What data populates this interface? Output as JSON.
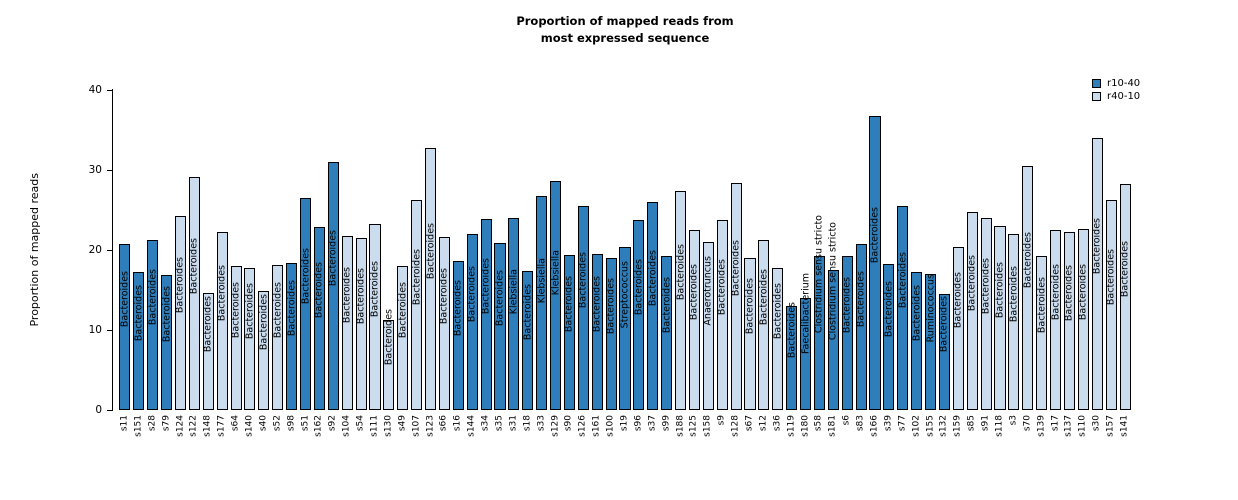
{
  "chart_data": {
    "type": "bar",
    "title": "Proportion of mapped reads from most expressed sequence",
    "title_lines": [
      "Proportion of mapped reads from",
      "most expressed sequence"
    ],
    "ylabel": "Proportion of mapped reads",
    "xlabel": "",
    "ylim": [
      0,
      40
    ],
    "yticks": [
      0,
      10,
      20,
      30,
      40
    ],
    "grid": false,
    "legend_position": "top-right",
    "legend": [
      {
        "label": "r10-40",
        "color": "#2e7ebc"
      },
      {
        "label": "r40-10",
        "color": "#cbdcef"
      }
    ],
    "bars": [
      {
        "sample": "s11",
        "taxon": "Bacteroides",
        "group": "r10-40",
        "value": 20.7
      },
      {
        "sample": "s151",
        "taxon": "Bacteroides",
        "group": "r10-40",
        "value": 17.3
      },
      {
        "sample": "s28",
        "taxon": "Bacteroides",
        "group": "r10-40",
        "value": 21.2
      },
      {
        "sample": "s79",
        "taxon": "Bacteroides",
        "group": "r10-40",
        "value": 16.9
      },
      {
        "sample": "s124",
        "taxon": "Bacteroides",
        "group": "r40-10",
        "value": 24.2
      },
      {
        "sample": "s122",
        "taxon": "Bacteroides",
        "group": "r40-10",
        "value": 29.1
      },
      {
        "sample": "s148",
        "taxon": "Bacteroides",
        "group": "r40-10",
        "value": 14.6
      },
      {
        "sample": "s177",
        "taxon": "Bacteroides",
        "group": "r40-10",
        "value": 22.2
      },
      {
        "sample": "s64",
        "taxon": "Bacteroides",
        "group": "r40-10",
        "value": 18.0
      },
      {
        "sample": "s140",
        "taxon": "Bacteroides",
        "group": "r40-10",
        "value": 17.8
      },
      {
        "sample": "s40",
        "taxon": "Bacteroides",
        "group": "r40-10",
        "value": 14.9
      },
      {
        "sample": "s52",
        "taxon": "Bacteroides",
        "group": "r40-10",
        "value": 18.1
      },
      {
        "sample": "s98",
        "taxon": "Bacteroides",
        "group": "r10-40",
        "value": 18.4
      },
      {
        "sample": "s51",
        "taxon": "Bacteroides",
        "group": "r10-40",
        "value": 26.5
      },
      {
        "sample": "s162",
        "taxon": "Bacteroides",
        "group": "r10-40",
        "value": 22.9
      },
      {
        "sample": "s92",
        "taxon": "Bacteroides",
        "group": "r10-40",
        "value": 31.0
      },
      {
        "sample": "s104",
        "taxon": "Bacteroides",
        "group": "r40-10",
        "value": 21.8
      },
      {
        "sample": "s54",
        "taxon": "Bacteroides",
        "group": "r40-10",
        "value": 21.5
      },
      {
        "sample": "s111",
        "taxon": "Bacteroides",
        "group": "r40-10",
        "value": 23.2
      },
      {
        "sample": "s130",
        "taxon": "Bacteroides",
        "group": "r40-10",
        "value": 11.3
      },
      {
        "sample": "s49",
        "taxon": "Bacteroides",
        "group": "r40-10",
        "value": 18.0
      },
      {
        "sample": "s107",
        "taxon": "Bacteroides",
        "group": "r40-10",
        "value": 26.2
      },
      {
        "sample": "s123",
        "taxon": "Bacteroides",
        "group": "r40-10",
        "value": 32.8
      },
      {
        "sample": "s66",
        "taxon": "Bacteroides",
        "group": "r40-10",
        "value": 21.6
      },
      {
        "sample": "s16",
        "taxon": "Bacteroides",
        "group": "r10-40",
        "value": 18.6
      },
      {
        "sample": "s144",
        "taxon": "Bacteroides",
        "group": "r10-40",
        "value": 22.0
      },
      {
        "sample": "s34",
        "taxon": "Bacteroides",
        "group": "r10-40",
        "value": 23.9
      },
      {
        "sample": "s35",
        "taxon": "Bacteroides",
        "group": "r10-40",
        "value": 20.9
      },
      {
        "sample": "s31",
        "taxon": "Klebsiella",
        "group": "r10-40",
        "value": 24.0
      },
      {
        "sample": "s18",
        "taxon": "Bacteroides",
        "group": "r10-40",
        "value": 17.4
      },
      {
        "sample": "s33",
        "taxon": "Klebsiella",
        "group": "r10-40",
        "value": 26.7
      },
      {
        "sample": "s129",
        "taxon": "Klebsiella",
        "group": "r10-40",
        "value": 28.6
      },
      {
        "sample": "s90",
        "taxon": "Bacteroides",
        "group": "r10-40",
        "value": 19.4
      },
      {
        "sample": "s126",
        "taxon": "Bacteroides",
        "group": "r10-40",
        "value": 25.5
      },
      {
        "sample": "s161",
        "taxon": "Bacteroides",
        "group": "r10-40",
        "value": 19.5
      },
      {
        "sample": "s100",
        "taxon": "Bacteroides",
        "group": "r10-40",
        "value": 19.0
      },
      {
        "sample": "s19",
        "taxon": "Streptococcus",
        "group": "r10-40",
        "value": 20.4
      },
      {
        "sample": "s96",
        "taxon": "Bacteroides",
        "group": "r10-40",
        "value": 23.8
      },
      {
        "sample": "s37",
        "taxon": "Bacteroides",
        "group": "r10-40",
        "value": 26.0
      },
      {
        "sample": "s99",
        "taxon": "Bacteroides",
        "group": "r10-40",
        "value": 19.3
      },
      {
        "sample": "s188",
        "taxon": "Bacteroides",
        "group": "r40-10",
        "value": 27.4
      },
      {
        "sample": "s125",
        "taxon": "Bacteroides",
        "group": "r40-10",
        "value": 22.5
      },
      {
        "sample": "s158",
        "taxon": "Anaerotruncus",
        "group": "r40-10",
        "value": 21.0
      },
      {
        "sample": "s9",
        "taxon": "Bacteroides",
        "group": "r40-10",
        "value": 23.8
      },
      {
        "sample": "s128",
        "taxon": "Bacteroides",
        "group": "r40-10",
        "value": 28.4
      },
      {
        "sample": "s67",
        "taxon": "Bacteroides",
        "group": "r40-10",
        "value": 19.0
      },
      {
        "sample": "s12",
        "taxon": "Bacteroides",
        "group": "r40-10",
        "value": 21.2
      },
      {
        "sample": "s36",
        "taxon": "Bacteroides",
        "group": "r40-10",
        "value": 17.8
      },
      {
        "sample": "s119",
        "taxon": "Bacteroides",
        "group": "r10-40",
        "value": 13.0
      },
      {
        "sample": "s180",
        "taxon": "Faecalibacterium",
        "group": "r10-40",
        "value": 14.0
      },
      {
        "sample": "s58",
        "taxon": "Clostridium sensu stricto",
        "group": "r10-40",
        "value": 19.3
      },
      {
        "sample": "s181",
        "taxon": "Clostridium sensu stricto",
        "group": "r10-40",
        "value": 17.5
      },
      {
        "sample": "s6",
        "taxon": "Bacteroides",
        "group": "r10-40",
        "value": 19.3
      },
      {
        "sample": "s83",
        "taxon": "Bacteroides",
        "group": "r10-40",
        "value": 20.7
      },
      {
        "sample": "s166",
        "taxon": "Bacteroides",
        "group": "r10-40",
        "value": 36.8
      },
      {
        "sample": "s39",
        "taxon": "Bacteroides",
        "group": "r10-40",
        "value": 18.2
      },
      {
        "sample": "s77",
        "taxon": "Bacteroides",
        "group": "r10-40",
        "value": 25.5
      },
      {
        "sample": "s102",
        "taxon": "Bacteroides",
        "group": "r10-40",
        "value": 17.2
      },
      {
        "sample": "s155",
        "taxon": "Ruminococcus",
        "group": "r10-40",
        "value": 17.0
      },
      {
        "sample": "s132",
        "taxon": "Bacteroides",
        "group": "r10-40",
        "value": 14.5
      },
      {
        "sample": "s159",
        "taxon": "Bacteroides",
        "group": "r40-10",
        "value": 20.4
      },
      {
        "sample": "s85",
        "taxon": "Bacteroides",
        "group": "r40-10",
        "value": 24.8
      },
      {
        "sample": "s91",
        "taxon": "Bacteroides",
        "group": "r40-10",
        "value": 24.0
      },
      {
        "sample": "s118",
        "taxon": "Bacteroides",
        "group": "r40-10",
        "value": 23.0
      },
      {
        "sample": "s3",
        "taxon": "Bacteroides",
        "group": "r40-10",
        "value": 22.0
      },
      {
        "sample": "s70",
        "taxon": "Bacteroides",
        "group": "r40-10",
        "value": 30.5
      },
      {
        "sample": "s139",
        "taxon": "Bacteroides",
        "group": "r40-10",
        "value": 19.2
      },
      {
        "sample": "s17",
        "taxon": "Bacteroides",
        "group": "r40-10",
        "value": 22.5
      },
      {
        "sample": "s137",
        "taxon": "Bacteroides",
        "group": "r40-10",
        "value": 22.3
      },
      {
        "sample": "s110",
        "taxon": "Bacteroides",
        "group": "r40-10",
        "value": 22.6
      },
      {
        "sample": "s30",
        "taxon": "Bacteroides",
        "group": "r40-10",
        "value": 34.0
      },
      {
        "sample": "s157",
        "taxon": "Bacteroides",
        "group": "r40-10",
        "value": 26.3
      },
      {
        "sample": "s141",
        "taxon": "Bacteroides",
        "group": "r40-10",
        "value": 28.3
      }
    ]
  }
}
